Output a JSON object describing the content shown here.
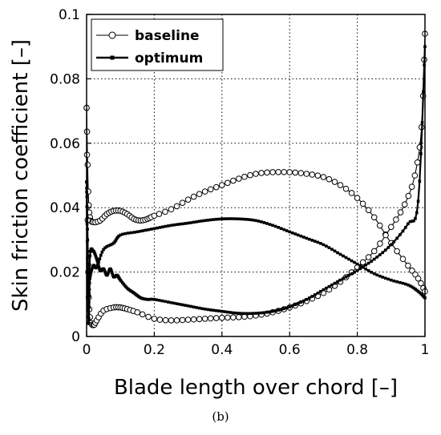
{
  "panel_label": "(b)",
  "chart_data": {
    "type": "line",
    "title": "",
    "xlabel": "Blade length over chord [–]",
    "ylabel": "Skin friction coefficient [–]",
    "xlim": [
      0,
      1
    ],
    "ylim": [
      0,
      0.1
    ],
    "xticks": [
      0,
      0.2,
      0.4,
      0.6,
      0.8,
      1
    ],
    "xtick_labels": [
      "0",
      "0.2",
      "0.4",
      "0.6",
      "0.8",
      "1"
    ],
    "yticks": [
      0,
      0.02,
      0.04,
      0.06,
      0.08,
      0.1
    ],
    "ytick_labels": [
      "0",
      "0.02",
      "0.04",
      "0.06",
      "0.08",
      "0.1"
    ],
    "grid": true,
    "legend_position": "top-left",
    "series": [
      {
        "name": "baseline",
        "marker": "open-circle",
        "curves": [
          [
            [
              0,
              0.071
            ],
            [
              0.005,
              0.045
            ],
            [
              0.01,
              0.037
            ],
            [
              0.02,
              0.0355
            ],
            [
              0.04,
              0.036
            ],
            [
              0.06,
              0.038
            ],
            [
              0.08,
              0.039
            ],
            [
              0.1,
              0.039
            ],
            [
              0.12,
              0.038
            ],
            [
              0.14,
              0.0365
            ],
            [
              0.16,
              0.036
            ],
            [
              0.18,
              0.0365
            ],
            [
              0.2,
              0.0375
            ],
            [
              0.25,
              0.0395
            ],
            [
              0.3,
              0.0425
            ],
            [
              0.35,
              0.045
            ],
            [
              0.4,
              0.047
            ],
            [
              0.45,
              0.049
            ],
            [
              0.5,
              0.0505
            ],
            [
              0.55,
              0.051
            ],
            [
              0.6,
              0.051
            ],
            [
              0.65,
              0.0505
            ],
            [
              0.7,
              0.0495
            ],
            [
              0.75,
              0.047
            ],
            [
              0.8,
              0.043
            ],
            [
              0.85,
              0.037
            ],
            [
              0.9,
              0.029
            ],
            [
              0.95,
              0.022
            ],
            [
              0.98,
              0.018
            ],
            [
              1.0,
              0.014
            ]
          ],
          [
            [
              0,
              0.071
            ],
            [
              0.005,
              0.02
            ],
            [
              0.01,
              0.006
            ],
            [
              0.02,
              0.0035
            ],
            [
              0.03,
              0.005
            ],
            [
              0.05,
              0.008
            ],
            [
              0.08,
              0.009
            ],
            [
              0.1,
              0.009
            ],
            [
              0.12,
              0.0085
            ],
            [
              0.15,
              0.0075
            ],
            [
              0.2,
              0.0055
            ],
            [
              0.25,
              0.005
            ],
            [
              0.3,
              0.0052
            ],
            [
              0.35,
              0.0055
            ],
            [
              0.4,
              0.0058
            ],
            [
              0.45,
              0.006
            ],
            [
              0.5,
              0.0065
            ],
            [
              0.55,
              0.0075
            ],
            [
              0.6,
              0.009
            ],
            [
              0.65,
              0.011
            ],
            [
              0.7,
              0.0135
            ],
            [
              0.75,
              0.017
            ],
            [
              0.8,
              0.0215
            ],
            [
              0.85,
              0.0265
            ],
            [
              0.9,
              0.034
            ],
            [
              0.94,
              0.041
            ],
            [
              0.97,
              0.05
            ],
            [
              0.99,
              0.065
            ],
            [
              1.0,
              0.094
            ]
          ]
        ]
      },
      {
        "name": "optimum",
        "marker": "filled-square",
        "curves": [
          [
            [
              0,
              0.048
            ],
            [
              0.003,
              0.03
            ],
            [
              0.006,
              0.01
            ],
            [
              0.01,
              0.018
            ],
            [
              0.02,
              0.022
            ],
            [
              0.03,
              0.0215
            ],
            [
              0.05,
              0.027
            ],
            [
              0.08,
              0.029
            ],
            [
              0.1,
              0.0315
            ],
            [
              0.15,
              0.0325
            ],
            [
              0.2,
              0.0335
            ],
            [
              0.25,
              0.0345
            ],
            [
              0.3,
              0.0352
            ],
            [
              0.35,
              0.036
            ],
            [
              0.4,
              0.0365
            ],
            [
              0.45,
              0.0365
            ],
            [
              0.5,
              0.036
            ],
            [
              0.55,
              0.0345
            ],
            [
              0.6,
              0.0325
            ],
            [
              0.65,
              0.0305
            ],
            [
              0.7,
              0.0285
            ],
            [
              0.75,
              0.0255
            ],
            [
              0.8,
              0.0225
            ],
            [
              0.85,
              0.0195
            ],
            [
              0.9,
              0.0175
            ],
            [
              0.95,
              0.016
            ],
            [
              0.98,
              0.014
            ],
            [
              1.0,
              0.012
            ]
          ],
          [
            [
              0,
              0.048
            ],
            [
              0.003,
              0.02
            ],
            [
              0.006,
              0.004
            ],
            [
              0.01,
              0.025
            ],
            [
              0.02,
              0.0265
            ],
            [
              0.03,
              0.024
            ],
            [
              0.04,
              0.0205
            ],
            [
              0.05,
              0.021
            ],
            [
              0.06,
              0.019
            ],
            [
              0.07,
              0.021
            ],
            [
              0.08,
              0.0185
            ],
            [
              0.09,
              0.019
            ],
            [
              0.1,
              0.0175
            ],
            [
              0.12,
              0.015
            ],
            [
              0.14,
              0.0135
            ],
            [
              0.16,
              0.012
            ],
            [
              0.18,
              0.0115
            ],
            [
              0.2,
              0.0115
            ],
            [
              0.25,
              0.0105
            ],
            [
              0.3,
              0.0095
            ],
            [
              0.35,
              0.0085
            ],
            [
              0.4,
              0.0078
            ],
            [
              0.45,
              0.0072
            ],
            [
              0.5,
              0.0072
            ],
            [
              0.55,
              0.0078
            ],
            [
              0.6,
              0.0092
            ],
            [
              0.65,
              0.0115
            ],
            [
              0.7,
              0.0145
            ],
            [
              0.75,
              0.0175
            ],
            [
              0.8,
              0.0205
            ],
            [
              0.85,
              0.024
            ],
            [
              0.9,
              0.0285
            ],
            [
              0.95,
              0.035
            ],
            [
              0.98,
              0.042
            ],
            [
              1.0,
              0.09
            ]
          ]
        ]
      }
    ]
  }
}
